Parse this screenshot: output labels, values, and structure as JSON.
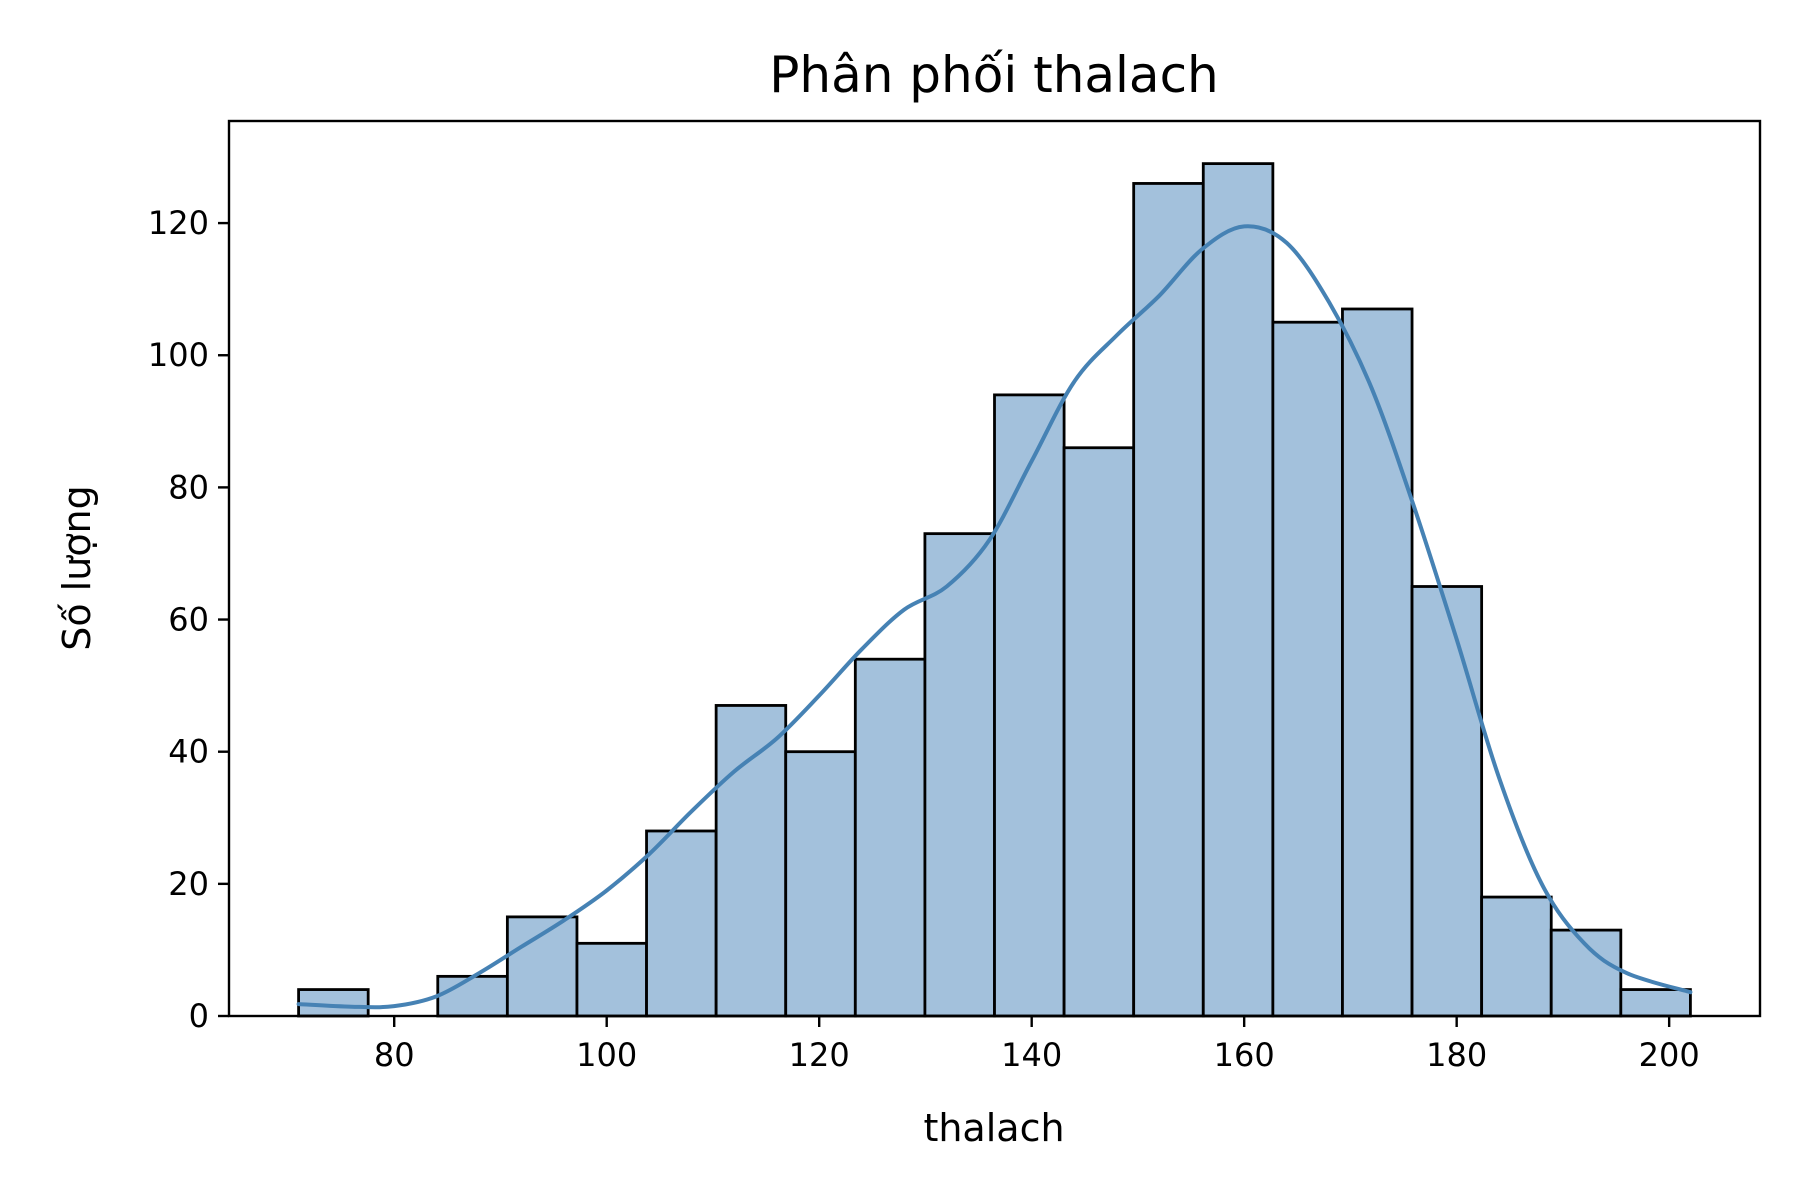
{
  "chart_data": {
    "type": "bar",
    "title": "Phân phối thalach",
    "xlabel": "thalach",
    "ylabel": "Số lượng",
    "xlim": [
      64.45,
      208.55
    ],
    "ylim": [
      0,
      135.45
    ],
    "xticks": [
      80,
      100,
      120,
      140,
      160,
      180,
      200
    ],
    "yticks": [
      0,
      20,
      40,
      60,
      80,
      100,
      120
    ],
    "bin_start": 71,
    "bin_width": 6.55,
    "counts": [
      4,
      0,
      6,
      15,
      11,
      28,
      47,
      40,
      54,
      73,
      94,
      86,
      126,
      129,
      105,
      107,
      65,
      18,
      13,
      4
    ],
    "kde": {
      "x": [
        71,
        76,
        80,
        84,
        88,
        92,
        96,
        100,
        104,
        108,
        112,
        116,
        120,
        124,
        128,
        132,
        136,
        140,
        144,
        148,
        152,
        156,
        160,
        164,
        168,
        172,
        176,
        180,
        184,
        188,
        192,
        196,
        202
      ],
      "y": [
        1.8,
        1.4,
        1.5,
        3,
        6.5,
        10.5,
        14.5,
        19,
        24.5,
        31,
        37,
        42,
        48.5,
        55.5,
        61.5,
        65,
        72,
        84,
        96,
        103,
        109,
        116,
        119.5,
        117,
        108,
        95,
        77,
        57,
        36,
        20,
        11,
        6.5,
        3.6
      ]
    },
    "bar_color": "#a3c1dc",
    "line_color": "#4682b4",
    "grid": false,
    "legend": "none"
  }
}
